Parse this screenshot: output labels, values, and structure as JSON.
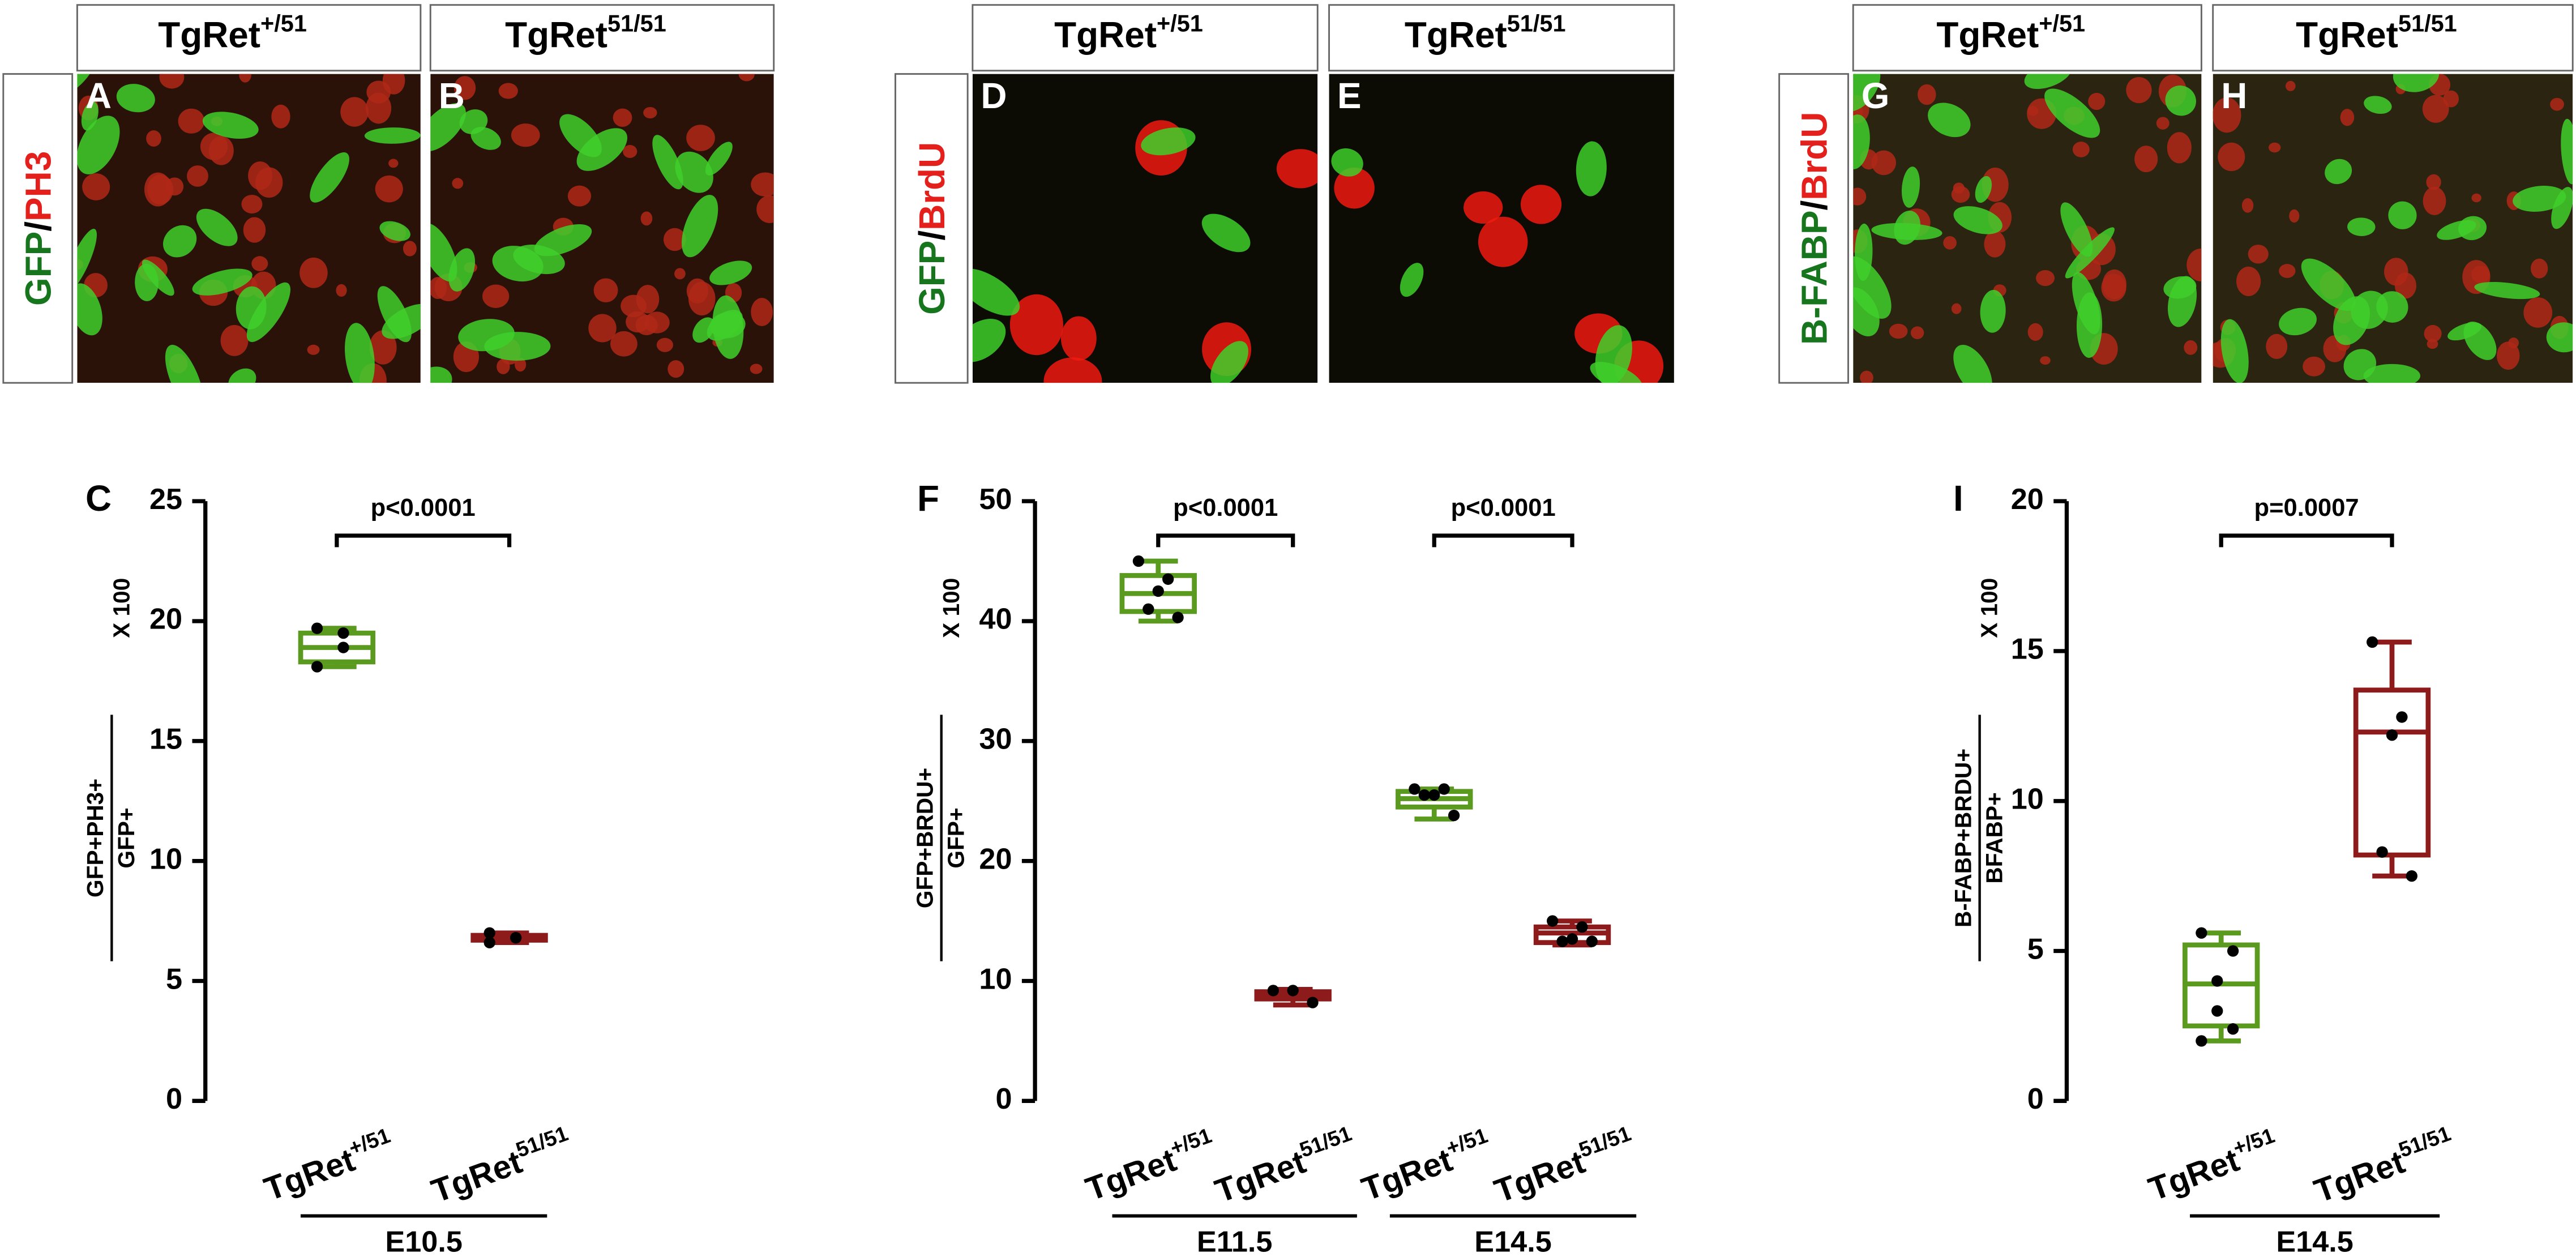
{
  "image_panels": [
    {
      "stain": [
        {
          "text": "GFP",
          "color": "#17761d"
        },
        {
          "text": "/",
          "color": "#000000"
        },
        {
          "text": "PH3",
          "color": "#e3201b"
        }
      ],
      "panels": [
        {
          "letter": "A",
          "genotype": {
            "text": "TgRet",
            "sup": "+/51"
          }
        },
        {
          "letter": "B",
          "genotype": {
            "text": "TgRet",
            "sup": "51/51"
          }
        }
      ]
    },
    {
      "stain": [
        {
          "text": "GFP",
          "color": "#17761d"
        },
        {
          "text": "/",
          "color": "#000000"
        },
        {
          "text": "BrdU",
          "color": "#e3201b"
        }
      ],
      "panels": [
        {
          "letter": "D",
          "genotype": {
            "text": "TgRet",
            "sup": "+/51"
          }
        },
        {
          "letter": "E",
          "genotype": {
            "text": "TgRet",
            "sup": "51/51"
          }
        }
      ]
    },
    {
      "stain": [
        {
          "text": "B-FABP",
          "color": "#17761d"
        },
        {
          "text": "/",
          "color": "#000000"
        },
        {
          "text": "BrdU",
          "color": "#e3201b"
        }
      ],
      "panels": [
        {
          "letter": "G",
          "genotype": {
            "text": "TgRet",
            "sup": "+/51"
          }
        },
        {
          "letter": "H",
          "genotype": {
            "text": "TgRet",
            "sup": "51/51"
          }
        }
      ]
    }
  ],
  "chart_data": [
    {
      "type": "box",
      "panel": "C",
      "ylabel": {
        "numerator": "GFP+PH3+",
        "denominator": "GFP+",
        "multiplier": "X 100"
      },
      "ylim": [
        0,
        25
      ],
      "yticks": [
        0,
        5,
        10,
        15,
        20,
        25
      ],
      "groups": [
        {
          "label": "E10.5",
          "comparison": "p<0.0001",
          "boxes": [
            {
              "category": {
                "text": "TgRet",
                "sup": "+/51"
              },
              "color": "#5a9a1f",
              "min": 18.1,
              "q1": 18.3,
              "median": 18.9,
              "q3": 19.5,
              "max": 19.7,
              "points": [
                18.1,
                18.9,
                19.5,
                19.7
              ]
            },
            {
              "category": {
                "text": "TgRet",
                "sup": "51/51"
              },
              "color": "#8e1b1b",
              "min": 6.6,
              "q1": 6.7,
              "median": 6.8,
              "q3": 6.9,
              "max": 7.0,
              "points": [
                6.6,
                6.8,
                6.8,
                7.0
              ]
            }
          ]
        }
      ]
    },
    {
      "type": "box",
      "panel": "F",
      "ylabel": {
        "numerator": "GFP+BRDU+",
        "denominator": "GFP+",
        "multiplier": "X 100"
      },
      "ylim": [
        0,
        50
      ],
      "yticks": [
        0,
        10,
        20,
        30,
        40,
        50
      ],
      "groups": [
        {
          "label": "E11.5",
          "comparison": "p<0.0001",
          "boxes": [
            {
              "category": {
                "text": "TgRet",
                "sup": "+/51"
              },
              "color": "#5a9a1f",
              "min": 40.0,
              "q1": 40.8,
              "median": 42.3,
              "q3": 43.8,
              "max": 45.0,
              "points": [
                45.0,
                43.5,
                42.5,
                41.0,
                40.3
              ]
            },
            {
              "category": {
                "text": "TgRet",
                "sup": "51/51"
              },
              "color": "#8e1b1b",
              "min": 8.0,
              "q1": 8.5,
              "median": 8.8,
              "q3": 9.1,
              "max": 9.3,
              "points": [
                9.2,
                9.2,
                8.2
              ]
            }
          ]
        },
        {
          "label": "E14.5",
          "comparison": "p<0.0001",
          "boxes": [
            {
              "category": {
                "text": "TgRet",
                "sup": "+/51"
              },
              "color": "#5a9a1f",
              "min": 23.5,
              "q1": 24.5,
              "median": 25.2,
              "q3": 25.8,
              "max": 26.0,
              "points": [
                26.0,
                26.0,
                25.5,
                25.5,
                23.8
              ]
            },
            {
              "category": {
                "text": "TgRet",
                "sup": "51/51"
              },
              "color": "#8e1b1b",
              "min": 13.0,
              "q1": 13.2,
              "median": 14.0,
              "q3": 14.5,
              "max": 15.0,
              "points": [
                15.0,
                14.5,
                13.5,
                13.3,
                13.3
              ]
            }
          ]
        }
      ]
    },
    {
      "type": "box",
      "panel": "I",
      "ylabel": {
        "numerator": "B-FABP+BRDU+",
        "denominator": "BFABP+",
        "multiplier": "X 100"
      },
      "ylim": [
        0,
        20
      ],
      "yticks": [
        0,
        5,
        10,
        15,
        20
      ],
      "groups": [
        {
          "label": "E14.5",
          "comparison": "p=0.0007",
          "boxes": [
            {
              "category": {
                "text": "TgRet",
                "sup": "+/51"
              },
              "color": "#5a9a1f",
              "min": 2.0,
              "q1": 2.5,
              "median": 3.9,
              "q3": 5.2,
              "max": 5.6,
              "points": [
                5.6,
                5.0,
                4.0,
                3.0,
                2.4,
                2.0
              ]
            },
            {
              "category": {
                "text": "TgRet",
                "sup": "51/51"
              },
              "color": "#8e1b1b",
              "min": 7.5,
              "q1": 8.2,
              "median": 12.3,
              "q3": 13.7,
              "max": 15.3,
              "points": [
                15.3,
                12.8,
                12.2,
                8.3,
                7.5
              ]
            }
          ]
        }
      ]
    }
  ]
}
